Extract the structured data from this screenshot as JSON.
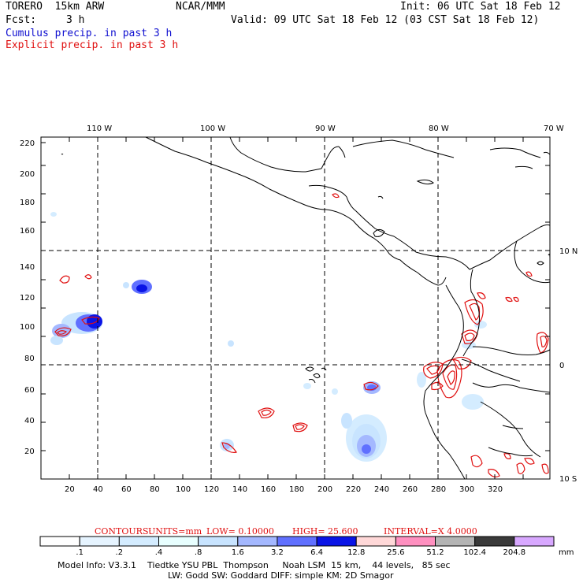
{
  "header": {
    "model": "TORERO  15km ARW",
    "center": "NCAR/MMM",
    "init": "Init: 06 UTC Sat 18 Feb 12",
    "fcst_label": "Fcst:",
    "fcst_value": "3 h",
    "valid": "Valid: 09 UTC Sat 18 Feb 12 (03 CST Sat 18 Feb 12)",
    "legend_cumulus": "Cumulus precip. in past 3 h",
    "legend_explicit": "Explicit precip. in past 3 h"
  },
  "colors": {
    "cumulus": "#1010d0",
    "explicit": "#e01010",
    "grid": "#000000"
  },
  "map": {
    "lon_labels": [
      "110 W",
      "100 W",
      "90 W",
      "80 W",
      "70 W"
    ],
    "lat_labels": [
      "10 N",
      "0",
      "10 S"
    ],
    "x_ticks": [
      "20",
      "40",
      "60",
      "80",
      "100",
      "120",
      "140",
      "160",
      "180",
      "200",
      "220",
      "240",
      "260",
      "280",
      "300",
      "320"
    ],
    "y_ticks": [
      "220",
      "200",
      "180",
      "160",
      "140",
      "120",
      "100",
      "80",
      "60",
      "40",
      "20"
    ]
  },
  "contours_info": {
    "title": "CONTOURS:",
    "units": "UNITS=mm",
    "low": "LOW= 0.10000",
    "high": "HIGH=  25.600",
    "interval": "INTERVAL=X  4.0000"
  },
  "colorbar": {
    "labels": [
      ".1",
      ".2",
      ".4",
      ".8",
      "1.6",
      "3.2",
      "6.4",
      "12.8",
      "25.6",
      "51.2",
      "102.4",
      "204.8"
    ],
    "unit": "mm",
    "colors": [
      "#ffffff",
      "#e6f4ff",
      "#d4ecff",
      "#e8ffff",
      "#c8e4ff",
      "#a4b8ff",
      "#6070ff",
      "#0a14e6",
      "#ffd8d8",
      "#ff90c0",
      "#b4b4b4",
      "#3a3a3a",
      "#d8a8ff"
    ]
  },
  "footer": {
    "line1": "Model Info: V3.3.1    Tiedtke YSU PBL  Thompson     Noah LSM  15 km,    44 levels,   85 sec",
    "line2": "LW: Godd SW: Goddard DIFF: simple KM: 2D Smagor"
  }
}
